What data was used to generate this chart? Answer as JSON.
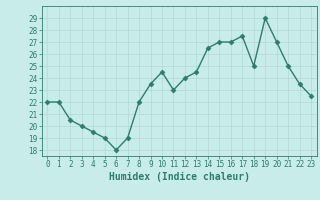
{
  "x": [
    0,
    1,
    2,
    3,
    4,
    5,
    6,
    7,
    8,
    9,
    10,
    11,
    12,
    13,
    14,
    15,
    16,
    17,
    18,
    19,
    20,
    21,
    22,
    23
  ],
  "y": [
    22,
    22,
    20.5,
    20,
    19.5,
    19,
    18,
    19,
    22,
    23.5,
    24.5,
    23,
    24,
    24.5,
    26.5,
    27,
    27,
    27.5,
    25,
    29,
    27,
    25,
    23.5,
    22.5
  ],
  "line_color": "#2d7d6e",
  "marker": "D",
  "markersize": 2.5,
  "linewidth": 1.0,
  "bg_color": "#c8ecea",
  "grid_color": "#b0d8d4",
  "xlabel": "Humidex (Indice chaleur)",
  "xlabel_fontsize": 7,
  "tick_fontsize": 5.5,
  "ylim": [
    17.5,
    30.0
  ],
  "xlim": [
    -0.5,
    23.5
  ],
  "yticks": [
    18,
    19,
    20,
    21,
    22,
    23,
    24,
    25,
    26,
    27,
    28,
    29
  ],
  "xticks": [
    0,
    1,
    2,
    3,
    4,
    5,
    6,
    7,
    8,
    9,
    10,
    11,
    12,
    13,
    14,
    15,
    16,
    17,
    18,
    19,
    20,
    21,
    22,
    23
  ]
}
